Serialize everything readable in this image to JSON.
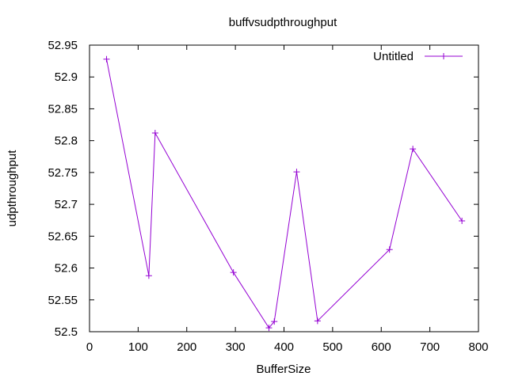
{
  "chart_data": {
    "type": "line",
    "title": "buffvsudpthroughput",
    "xlabel": "BufferSize",
    "ylabel": "udpthroughput",
    "xlim": [
      0,
      800
    ],
    "ylim": [
      52.5,
      52.95
    ],
    "x_ticks": [
      "0",
      "100",
      "200",
      "300",
      "400",
      "500",
      "600",
      "700",
      "800"
    ],
    "y_ticks": [
      "52.5",
      "52.55",
      "52.6",
      "52.65",
      "52.7",
      "52.75",
      "52.8",
      "52.85",
      "52.9",
      "52.95"
    ],
    "grid": false,
    "legend_position": "top-right",
    "series": [
      {
        "name": "Untitled",
        "color": "#9400d3",
        "marker": "plus",
        "x": [
          35,
          122,
          135,
          296,
          369,
          380,
          426,
          469,
          617,
          665,
          766
        ],
        "y": [
          52.928,
          52.588,
          52.812,
          52.593,
          52.506,
          52.516,
          52.751,
          52.517,
          52.629,
          52.787,
          52.674
        ]
      }
    ]
  }
}
